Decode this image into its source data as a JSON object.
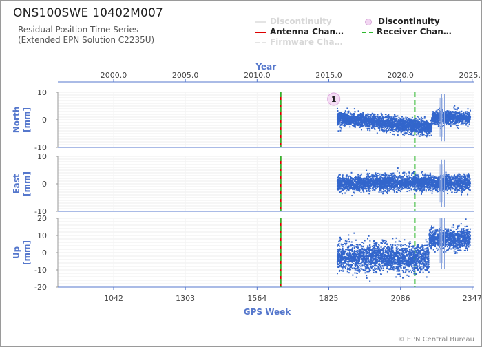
{
  "header": {
    "title": "ONS100SWE 10402M007",
    "subtitle_line1": "Residual Position Time Series",
    "subtitle_line2": "(Extended EPN Solution C2235U)"
  },
  "legend": [
    {
      "label": "Discontinuity",
      "style": "line",
      "color": "#e0e0e0",
      "faded": true
    },
    {
      "label": "Discontinuity",
      "style": "circle",
      "color": "#e070e0",
      "faded": false
    },
    {
      "label": "Antenna Chan…",
      "style": "line",
      "color": "#dd0000",
      "faded": false
    },
    {
      "label": "Receiver Chan…",
      "style": "dashed",
      "color": "#2eb82e",
      "faded": false
    },
    {
      "label": "Firmware Cha…",
      "style": "dashed",
      "color": "#e0e0e0",
      "faded": true
    }
  ],
  "footer": {
    "copyright": "© EPN Central Bureau"
  },
  "chart_data": {
    "type": "scatter",
    "top_axis": {
      "label": "Year",
      "ticks": [
        "2000.0",
        "2005.0",
        "2010.0",
        "2015.0",
        "2020.0",
        "2025.0"
      ],
      "tick_values": [
        1042,
        1303,
        1564,
        1825,
        2086,
        2347
      ]
    },
    "x_axis": {
      "label": "GPS Week",
      "ticks": [
        "1042",
        "1303",
        "1564",
        "1825",
        "2086",
        "2347"
      ],
      "tick_values": [
        1042,
        1303,
        1564,
        1825,
        2086,
        2347
      ],
      "range": [
        839,
        2355
      ]
    },
    "events": [
      {
        "type": "antenna_change",
        "week": 1650,
        "color": "#dd0000"
      },
      {
        "type": "receiver_change",
        "week": 1650,
        "color": "#2eb82e"
      },
      {
        "type": "receiver_change",
        "week": 2138,
        "color": "#2eb82e"
      }
    ],
    "discontinuity_markers": [
      {
        "label": "1",
        "week": 1843
      }
    ],
    "data_span_weeks": [
      1856,
      2340
    ],
    "panels": [
      {
        "name": "North",
        "ylabel": "North\n[mm]",
        "unit": "mm",
        "ylim": [
          -10,
          10
        ],
        "ticks": [
          "10",
          "0",
          "-10"
        ],
        "tick_values": [
          10,
          0,
          -10
        ],
        "segments": [
          {
            "from": 1856,
            "to": 2200,
            "mean": 0.5,
            "trend": -0.01,
            "spread": 1.3
          },
          {
            "from": 2200,
            "to": 2340,
            "mean": 0.8,
            "trend": 0,
            "spread": 1.2
          }
        ]
      },
      {
        "name": "East",
        "ylabel": "East\n[mm]",
        "unit": "mm",
        "ylim": [
          -10,
          10
        ],
        "ticks": [
          "10",
          "0",
          "-10"
        ],
        "tick_values": [
          10,
          0,
          -10
        ],
        "segments": [
          {
            "from": 1856,
            "to": 2200,
            "mean": 0,
            "trend": 0.002,
            "spread": 1.4
          },
          {
            "from": 2200,
            "to": 2340,
            "mean": 0.2,
            "trend": 0,
            "spread": 1.4
          }
        ]
      },
      {
        "name": "Up",
        "ylabel": "Up\n[mm]",
        "unit": "mm",
        "ylim": [
          -20,
          20
        ],
        "ticks": [
          "20",
          "10",
          "0",
          "-10",
          "-20"
        ],
        "tick_values": [
          20,
          10,
          0,
          -10,
          -20
        ],
        "segments": [
          {
            "from": 1856,
            "to": 2190,
            "mean": -3,
            "trend": 0,
            "spread": 4.0
          },
          {
            "from": 2190,
            "to": 2340,
            "mean": 8,
            "trend": 0,
            "spread": 3.0
          }
        ]
      }
    ],
    "series_color": "#3366cc",
    "grid": true
  }
}
